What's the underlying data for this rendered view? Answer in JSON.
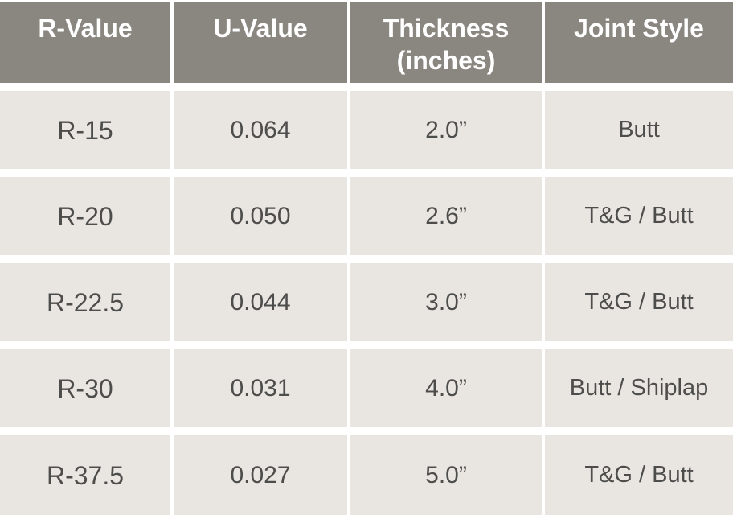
{
  "colors": {
    "header_bg": "#8a8680",
    "row_bg": "#e9e6e2",
    "gap": "#ffffff",
    "header_text": "#ffffff",
    "body_text": "#4d4d4b"
  },
  "chart_data": {
    "type": "table",
    "title": "",
    "columns": [
      "R-Value",
      "U-Value",
      "Thickness (inches)",
      "Joint Style"
    ],
    "rows": [
      [
        "R-15",
        "0.064",
        "2.0”",
        "Butt"
      ],
      [
        "R-20",
        "0.050",
        "2.6”",
        "T&G / Butt"
      ],
      [
        "R-22.5",
        "0.044",
        "3.0”",
        "T&G / Butt"
      ],
      [
        "R-30",
        "0.031",
        "4.0”",
        "Butt / Shiplap"
      ],
      [
        "R-37.5",
        "0.027",
        "5.0”",
        "T&G / Butt"
      ]
    ]
  }
}
